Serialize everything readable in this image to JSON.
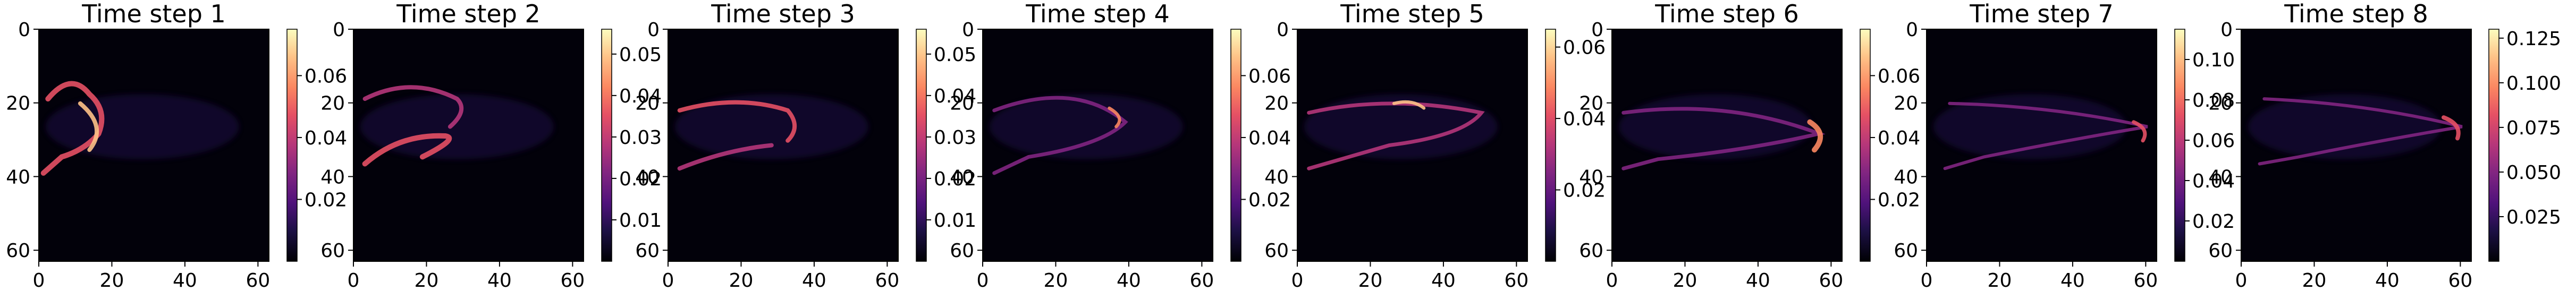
{
  "chart_data": [
    {
      "type": "heatmap",
      "title": "Time step 1",
      "xticks": [
        "0",
        "20",
        "40",
        "60"
      ],
      "yticks": [
        "0",
        "20",
        "40",
        "60"
      ],
      "xlim": [
        0,
        63
      ],
      "ylim": [
        63,
        0
      ],
      "colormap": "magma",
      "colorbar": {
        "min": 0,
        "max": 0.075,
        "ticks": [
          {
            "v": 0.02,
            "label": "0.02"
          },
          {
            "v": 0.04,
            "label": "0.04"
          },
          {
            "v": 0.06,
            "label": "0.06"
          }
        ]
      }
    },
    {
      "type": "heatmap",
      "title": "Time step 2",
      "xticks": [
        "0",
        "20",
        "40",
        "60"
      ],
      "yticks": [
        "0",
        "20",
        "40",
        "60"
      ],
      "xlim": [
        0,
        63
      ],
      "ylim": [
        63,
        0
      ],
      "colormap": "magma",
      "colorbar": {
        "min": 0,
        "max": 0.056,
        "ticks": [
          {
            "v": 0.01,
            "label": "0.01"
          },
          {
            "v": 0.02,
            "label": "0.02"
          },
          {
            "v": 0.03,
            "label": "0.03"
          },
          {
            "v": 0.04,
            "label": "0.04"
          },
          {
            "v": 0.05,
            "label": "0.05"
          }
        ]
      }
    },
    {
      "type": "heatmap",
      "title": "Time step 3",
      "xticks": [
        "0",
        "20",
        "40",
        "60"
      ],
      "yticks": [
        "0",
        "20",
        "40",
        "60"
      ],
      "xlim": [
        0,
        63
      ],
      "ylim": [
        63,
        0
      ],
      "colormap": "magma",
      "colorbar": {
        "min": 0,
        "max": 0.056,
        "ticks": [
          {
            "v": 0.01,
            "label": "0.01"
          },
          {
            "v": 0.02,
            "label": "0.02"
          },
          {
            "v": 0.03,
            "label": "0.03"
          },
          {
            "v": 0.04,
            "label": "0.04"
          },
          {
            "v": 0.05,
            "label": "0.05"
          }
        ]
      }
    },
    {
      "type": "heatmap",
      "title": "Time step 4",
      "xticks": [
        "0",
        "20",
        "40",
        "60"
      ],
      "yticks": [
        "0",
        "20",
        "40",
        "60"
      ],
      "xlim": [
        0,
        63
      ],
      "ylim": [
        63,
        0
      ],
      "colormap": "magma",
      "colorbar": {
        "min": 0,
        "max": 0.075,
        "ticks": [
          {
            "v": 0.02,
            "label": "0.02"
          },
          {
            "v": 0.04,
            "label": "0.04"
          },
          {
            "v": 0.06,
            "label": "0.06"
          }
        ]
      }
    },
    {
      "type": "heatmap",
      "title": "Time step 5",
      "xticks": [
        "0",
        "20",
        "40",
        "60"
      ],
      "yticks": [
        "0",
        "20",
        "40",
        "60"
      ],
      "xlim": [
        0,
        63
      ],
      "ylim": [
        63,
        0
      ],
      "colormap": "magma",
      "colorbar": {
        "min": 0,
        "max": 0.065,
        "ticks": [
          {
            "v": 0.02,
            "label": "0.02"
          },
          {
            "v": 0.04,
            "label": "0.04"
          },
          {
            "v": 0.06,
            "label": "0.06"
          }
        ]
      }
    },
    {
      "type": "heatmap",
      "title": "Time step 6",
      "xticks": [
        "0",
        "20",
        "40",
        "60"
      ],
      "yticks": [
        "0",
        "20",
        "40",
        "60"
      ],
      "xlim": [
        0,
        63
      ],
      "ylim": [
        63,
        0
      ],
      "colormap": "magma",
      "colorbar": {
        "min": 0,
        "max": 0.075,
        "ticks": [
          {
            "v": 0.02,
            "label": "0.02"
          },
          {
            "v": 0.04,
            "label": "0.04"
          },
          {
            "v": 0.06,
            "label": "0.06"
          }
        ]
      }
    },
    {
      "type": "heatmap",
      "title": "Time step 7",
      "xticks": [
        "0",
        "20",
        "40",
        "60"
      ],
      "yticks": [
        "0",
        "20",
        "40",
        "60"
      ],
      "xlim": [
        0,
        63
      ],
      "ylim": [
        63,
        0
      ],
      "colormap": "magma",
      "colorbar": {
        "min": 0,
        "max": 0.115,
        "ticks": [
          {
            "v": 0.02,
            "label": "0.02"
          },
          {
            "v": 0.04,
            "label": "0.04"
          },
          {
            "v": 0.06,
            "label": "0.06"
          },
          {
            "v": 0.08,
            "label": "0.08"
          },
          {
            "v": 0.1,
            "label": "0.10"
          }
        ]
      }
    },
    {
      "type": "heatmap",
      "title": "Time step 8",
      "xticks": [
        "0",
        "20",
        "40",
        "60"
      ],
      "yticks": [
        "0",
        "20",
        "40",
        "60"
      ],
      "xlim": [
        0,
        63
      ],
      "ylim": [
        63,
        0
      ],
      "colormap": "magma",
      "colorbar": {
        "min": 0,
        "max": 0.13,
        "ticks": [
          {
            "v": 0.025,
            "label": "0.025"
          },
          {
            "v": 0.05,
            "label": "0.050"
          },
          {
            "v": 0.075,
            "label": "0.075"
          },
          {
            "v": 0.1,
            "label": "0.100"
          },
          {
            "v": 0.125,
            "label": "0.125"
          }
        ]
      }
    }
  ]
}
